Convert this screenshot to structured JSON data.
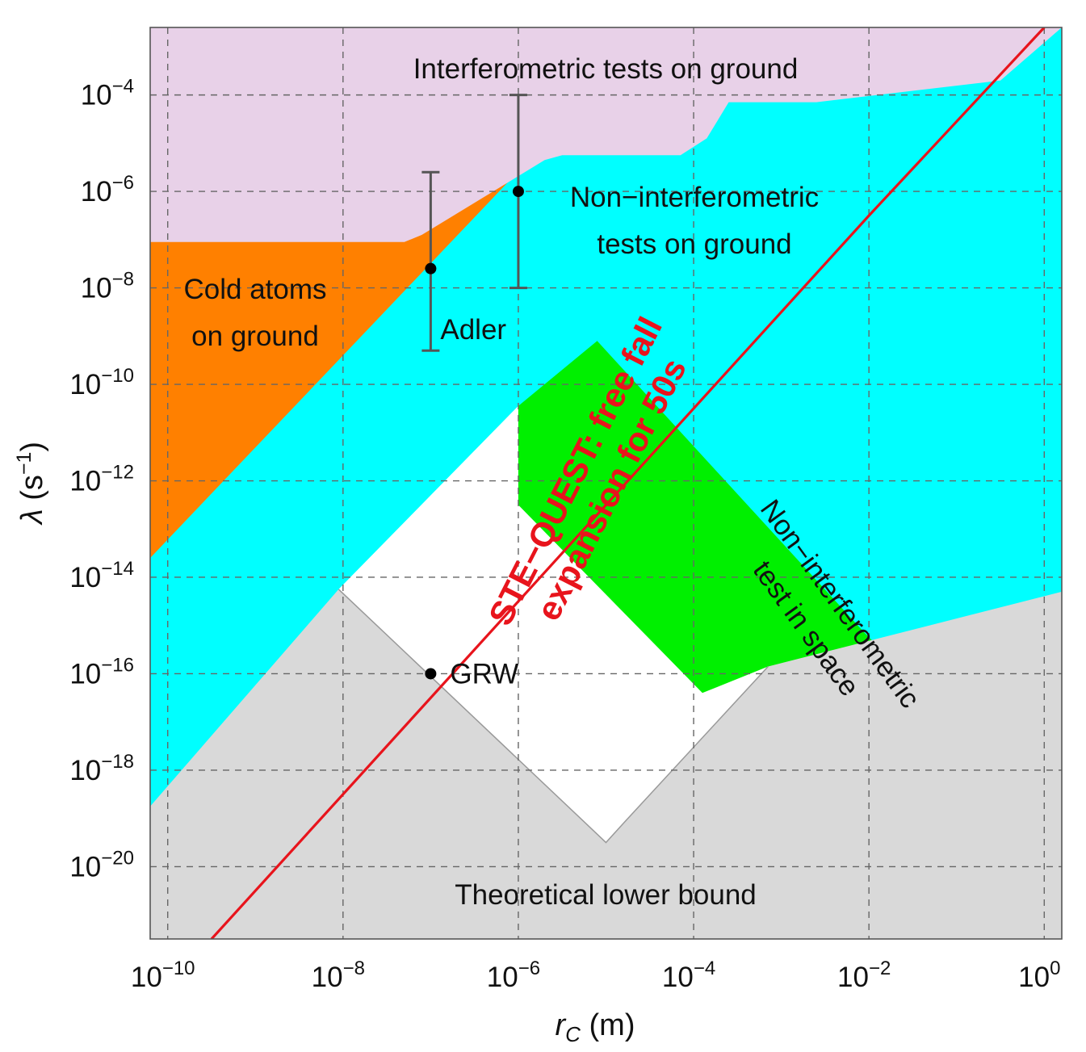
{
  "chart_data": {
    "type": "area",
    "title": "",
    "xlabel": "r_C (m)",
    "ylabel": "λ (s^-1)",
    "xscale": "log",
    "yscale": "log",
    "xlim_exp": [
      -10.2,
      0.2
    ],
    "ylim_exp": [
      -21.5,
      -2.6
    ],
    "grid": true,
    "x_ticks": [
      {
        "base": "10",
        "exp": "−10"
      },
      {
        "base": "10",
        "exp": "−8"
      },
      {
        "base": "10",
        "exp": "−6"
      },
      {
        "base": "10",
        "exp": "−4"
      },
      {
        "base": "10",
        "exp": "−2"
      },
      {
        "base": "10",
        "exp": "0"
      }
    ],
    "x_tick_exps": [
      -10,
      -8,
      -6,
      -4,
      -2,
      0
    ],
    "y_ticks": [
      {
        "base": "10",
        "exp": "−4"
      },
      {
        "base": "10",
        "exp": "−6"
      },
      {
        "base": "10",
        "exp": "−8"
      },
      {
        "base": "10",
        "exp": "−10"
      },
      {
        "base": "10",
        "exp": "−12"
      },
      {
        "base": "10",
        "exp": "−14"
      },
      {
        "base": "10",
        "exp": "−16"
      },
      {
        "base": "10",
        "exp": "−18"
      },
      {
        "base": "10",
        "exp": "−20"
      }
    ],
    "y_tick_exps": [
      -4,
      -6,
      -8,
      -10,
      -12,
      -14,
      -16,
      -18,
      -20
    ],
    "regions": [
      {
        "name": "Interferometric tests on ground",
        "color": "#e8d1e8",
        "label_lines": [
          "Interferometric tests on ground"
        ],
        "boundary": [
          [
            -10.2,
            -7.05
          ],
          [
            -7.3,
            -7.05
          ],
          [
            -7.1,
            -6.9
          ],
          [
            -5.7,
            -5.35
          ],
          [
            -5.5,
            -5.25
          ],
          [
            -4.15,
            -5.25
          ],
          [
            -3.85,
            -4.9
          ],
          [
            -3.6,
            -4.15
          ],
          [
            -2.6,
            -4.15
          ],
          [
            -0.5,
            -3.7
          ],
          [
            0.2,
            -2.6
          ]
        ]
      },
      {
        "name": "Cold atoms on ground",
        "color": "#ff8000",
        "label_lines": [
          "Cold atoms",
          "on ground"
        ],
        "boundary": [
          [
            -10.2,
            -13.6
          ],
          [
            -5.8,
            -5.2
          ]
        ]
      },
      {
        "name": "Non-interferometric tests on ground",
        "color": "#00ffff",
        "label_lines": [
          "Non−interferometric",
          "tests on ground"
        ],
        "boundary": [
          [
            -10.2,
            -19.25
          ],
          [
            -8.05,
            -14.25
          ],
          [
            -6.0,
            -10.45
          ],
          [
            -2.9,
            -16.4
          ],
          [
            -1.9,
            -17.3
          ],
          [
            -1.1,
            -16.9
          ],
          [
            0.2,
            -14.3
          ]
        ]
      },
      {
        "name": "Non-interferometric test in space",
        "color": "#00f000",
        "label_lines": [
          "Non−interferometric",
          "test in space"
        ],
        "boundary": [
          [
            -6.0,
            -10.45
          ],
          [
            -5.1,
            -9.1
          ],
          [
            -2.05,
            -15.15
          ],
          [
            -1.1,
            -16.9
          ],
          [
            0.2,
            -15.3
          ],
          [
            -0.8,
            -17.5
          ],
          [
            -1.3,
            -18.4
          ],
          [
            -1.75,
            -18.8
          ],
          [
            -1.9,
            -18.65
          ],
          [
            -2.6,
            -17.35
          ],
          [
            -3.15,
            -15.85
          ],
          [
            -3.9,
            -16.4
          ],
          [
            -6.0,
            -12.5
          ]
        ]
      },
      {
        "name": "Theoretical lower bound",
        "color": "#d9d9d9",
        "label_lines": [
          "Theoretical lower bound"
        ],
        "boundary": [
          [
            -10.2,
            -18.75
          ],
          [
            -8.05,
            -14.25
          ],
          [
            -5.0,
            -19.5
          ],
          [
            -4.8,
            -19.1
          ],
          [
            -3.15,
            -15.85
          ],
          [
            0.2,
            -14.3
          ]
        ]
      }
    ],
    "series": [
      {
        "name": "STE−QUEST: free fall expansion for 50s",
        "color": "#e8141c",
        "label_lines": [
          "STE−QUEST: free fall",
          "expansion for 50s"
        ],
        "x_exp": [
          -9.5,
          0.0
        ],
        "y_exp": [
          -21.5,
          -2.6
        ],
        "points": [
          [
            -9.5,
            -21.5
          ],
          [
            -2.0,
            -6.5
          ],
          [
            0.0,
            -2.6
          ]
        ]
      }
    ],
    "error_bars": [
      {
        "name": "Adler",
        "label": "Adler",
        "x_exp": -7.0,
        "y_exp": -7.6,
        "y_low_exp": -9.3,
        "y_high_exp": -5.6
      },
      {
        "name": "Adler-upper",
        "label": "",
        "x_exp": -6.0,
        "y_exp": -6.0,
        "y_low_exp": -8.0,
        "y_high_exp": -4.0
      }
    ],
    "points": [
      {
        "name": "GRW",
        "label": "GRW",
        "x_exp": -7.0,
        "y_exp": -16.0
      }
    ]
  }
}
